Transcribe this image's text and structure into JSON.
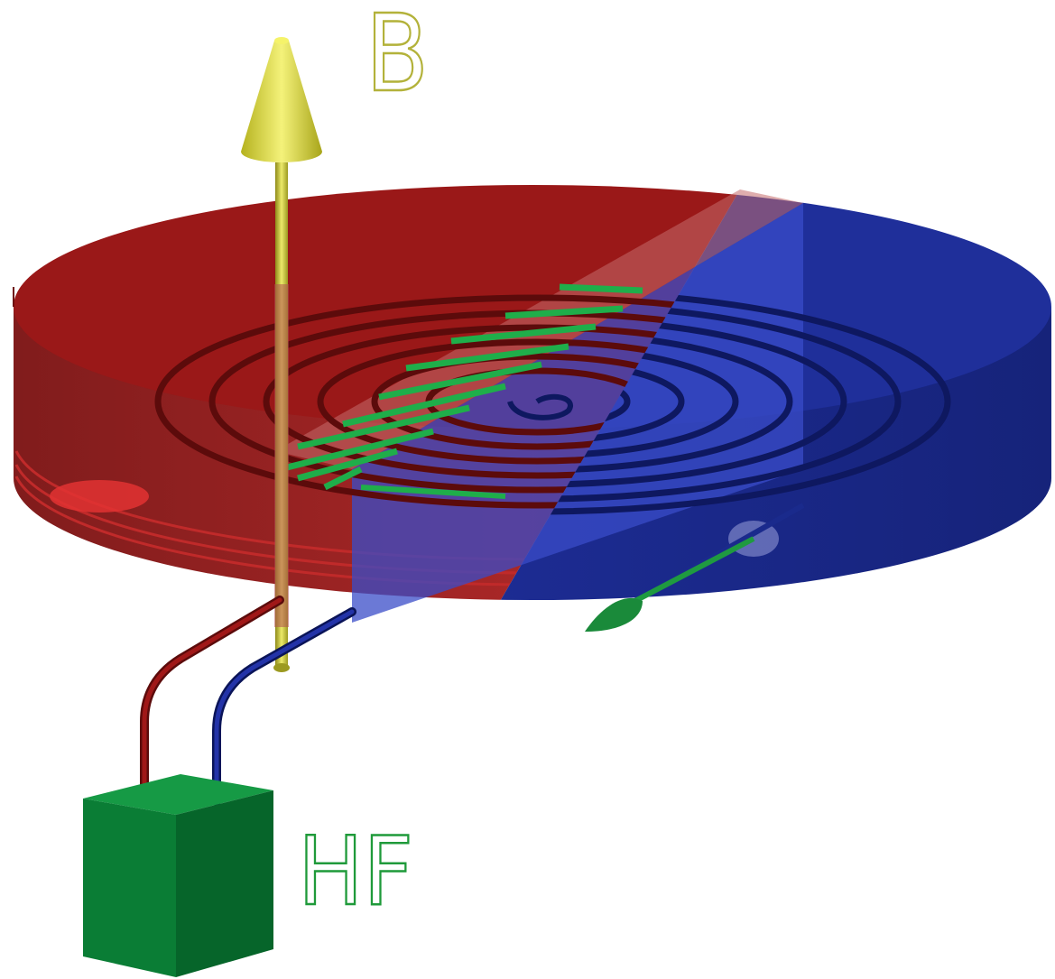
{
  "labels": {
    "field": "B",
    "source": "HF"
  },
  "colors": {
    "background": "#ffffff",
    "half_left": "#9c1a1a",
    "half_right": "#1f2f9a",
    "coil_green": "#1fae4a",
    "field_arrow": "#d8d43a",
    "source_box": "#0d7a37",
    "wire_red": "#8a1515",
    "wire_blue": "#1a2a8c"
  },
  "icons": {
    "field_arrow": "upward-cone-arrow",
    "source": "box-shape",
    "exit_arrow": "leaf-arrowhead"
  }
}
